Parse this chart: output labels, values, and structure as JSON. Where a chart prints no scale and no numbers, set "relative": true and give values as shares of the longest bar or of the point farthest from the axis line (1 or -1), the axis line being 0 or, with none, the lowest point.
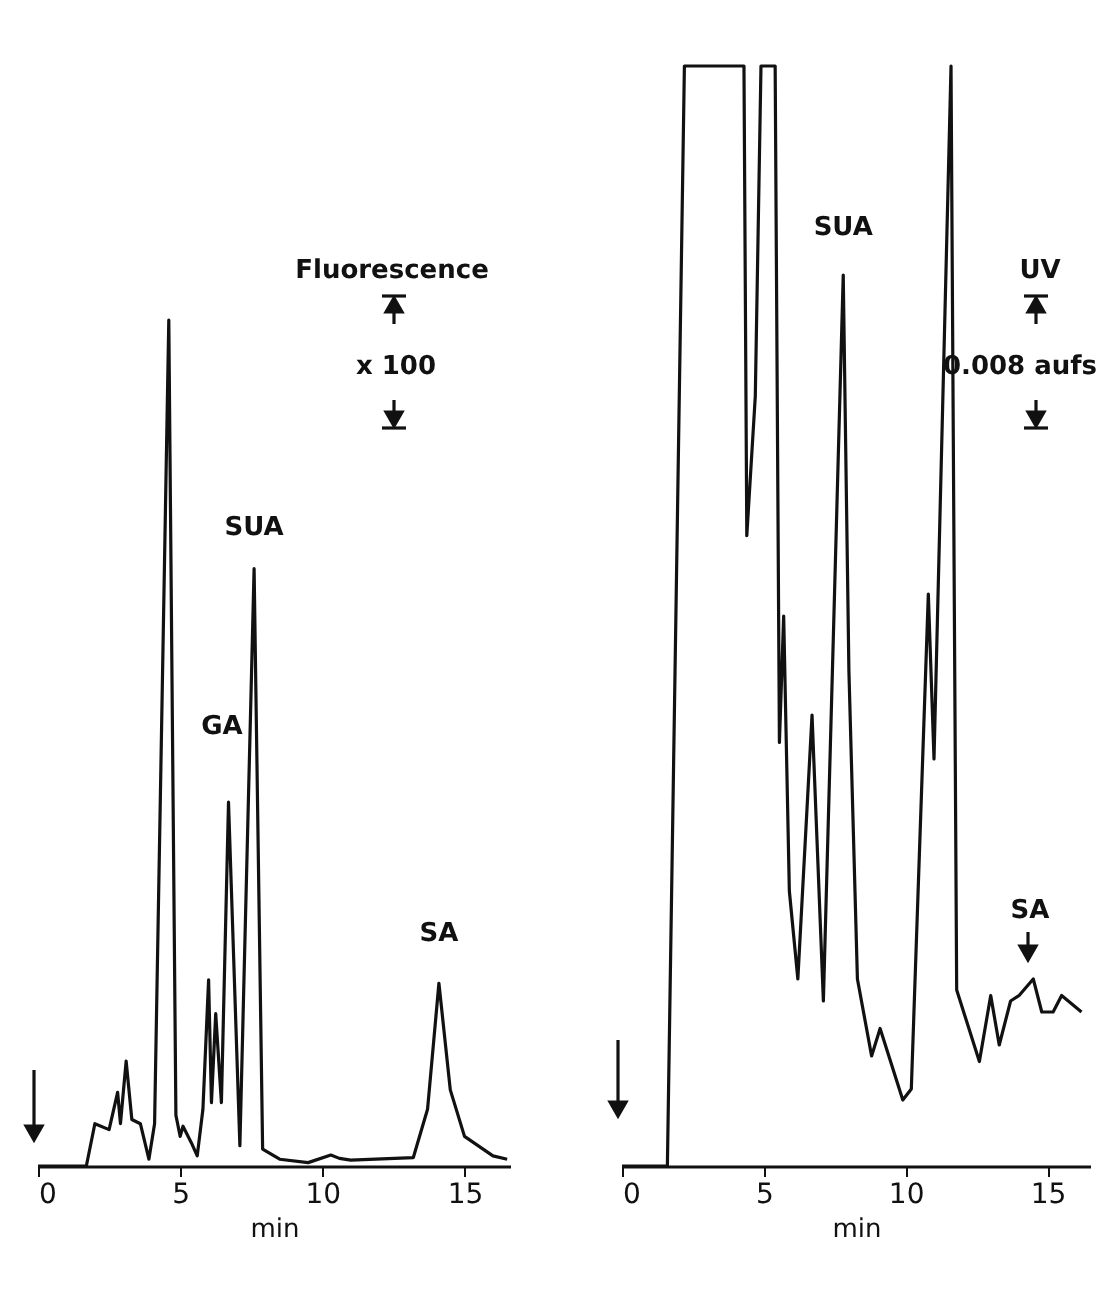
{
  "chart_data": [
    {
      "type": "line",
      "relative": true,
      "xlabel": "min",
      "xlim": [
        0,
        16.6
      ],
      "xticks": [
        0,
        5,
        10,
        15
      ],
      "grid": false,
      "marker": "none",
      "line_style": "solid",
      "series": [
        {
          "color": "#111111",
          "x": [
            0,
            1.7,
            2.0,
            2.5,
            2.8,
            2.9,
            3.1,
            3.3,
            3.6,
            3.9,
            4.1,
            4.6,
            4.85,
            5.0,
            5.1,
            5.4,
            5.6,
            5.8,
            6.0,
            6.1,
            6.25,
            6.45,
            6.7,
            7.1,
            7.6,
            7.9,
            8.5,
            9.5,
            10.3,
            10.6,
            11.0,
            13.2,
            13.7,
            14.1,
            14.5,
            15.0,
            16.0,
            16.5
          ],
          "values": [
            0,
            0,
            0.05,
            0.043,
            0.087,
            0.05,
            0.124,
            0.055,
            0.05,
            0.008,
            0.05,
            1.0,
            0.06,
            0.035,
            0.047,
            0.027,
            0.012,
            0.067,
            0.22,
            0.075,
            0.18,
            0.075,
            0.43,
            0.024,
            0.706,
            0.02,
            0.008,
            0.004,
            0.013,
            0.009,
            0.007,
            0.01,
            0.067,
            0.216,
            0.09,
            0.035,
            0.012,
            0.008
          ]
        }
      ],
      "annotations": [
        "Fluorescence",
        "x 100",
        {
          "text": "SUA",
          "x": 7.6,
          "y": 0.706
        },
        "GA",
        {
          "text": "SA",
          "x": 14.1,
          "y": 0.216
        }
      ]
    },
    {
      "type": "line",
      "relative": true,
      "xlabel": "min",
      "xlim": [
        0,
        16.5
      ],
      "xticks": [
        0,
        5,
        10,
        15
      ],
      "grid": false,
      "marker": "none",
      "line_style": "solid",
      "series": [
        {
          "color": "#111111",
          "x": [
            0,
            1.6,
            2.2,
            4.3,
            4.4,
            4.7,
            4.9,
            5.4,
            5.55,
            5.7,
            5.9,
            6.2,
            6.7,
            7.1,
            7.8,
            8.0,
            8.3,
            8.8,
            9.1,
            9.9,
            10.2,
            10.8,
            11.0,
            11.6,
            11.8,
            12.6,
            13.0,
            13.3,
            13.7,
            14.0,
            14.5,
            14.8,
            15.2,
            15.5,
            16.2
          ],
          "values": [
            0,
            0,
            1.0,
            1.0,
            0.573,
            0.7,
            1.0,
            1.0,
            0.385,
            0.5,
            0.25,
            0.17,
            0.41,
            0.15,
            0.81,
            0.45,
            0.17,
            0.1,
            0.125,
            0.06,
            0.07,
            0.52,
            0.37,
            1.0,
            0.16,
            0.095,
            0.155,
            0.11,
            0.15,
            0.155,
            0.17,
            0.14,
            0.14,
            0.155,
            0.14
          ]
        }
      ],
      "annotations": [
        {
          "text": "SUA",
          "x": 7.8,
          "y": 0.81
        },
        "UV",
        "0.008 aufs",
        "SA"
      ]
    }
  ]
}
